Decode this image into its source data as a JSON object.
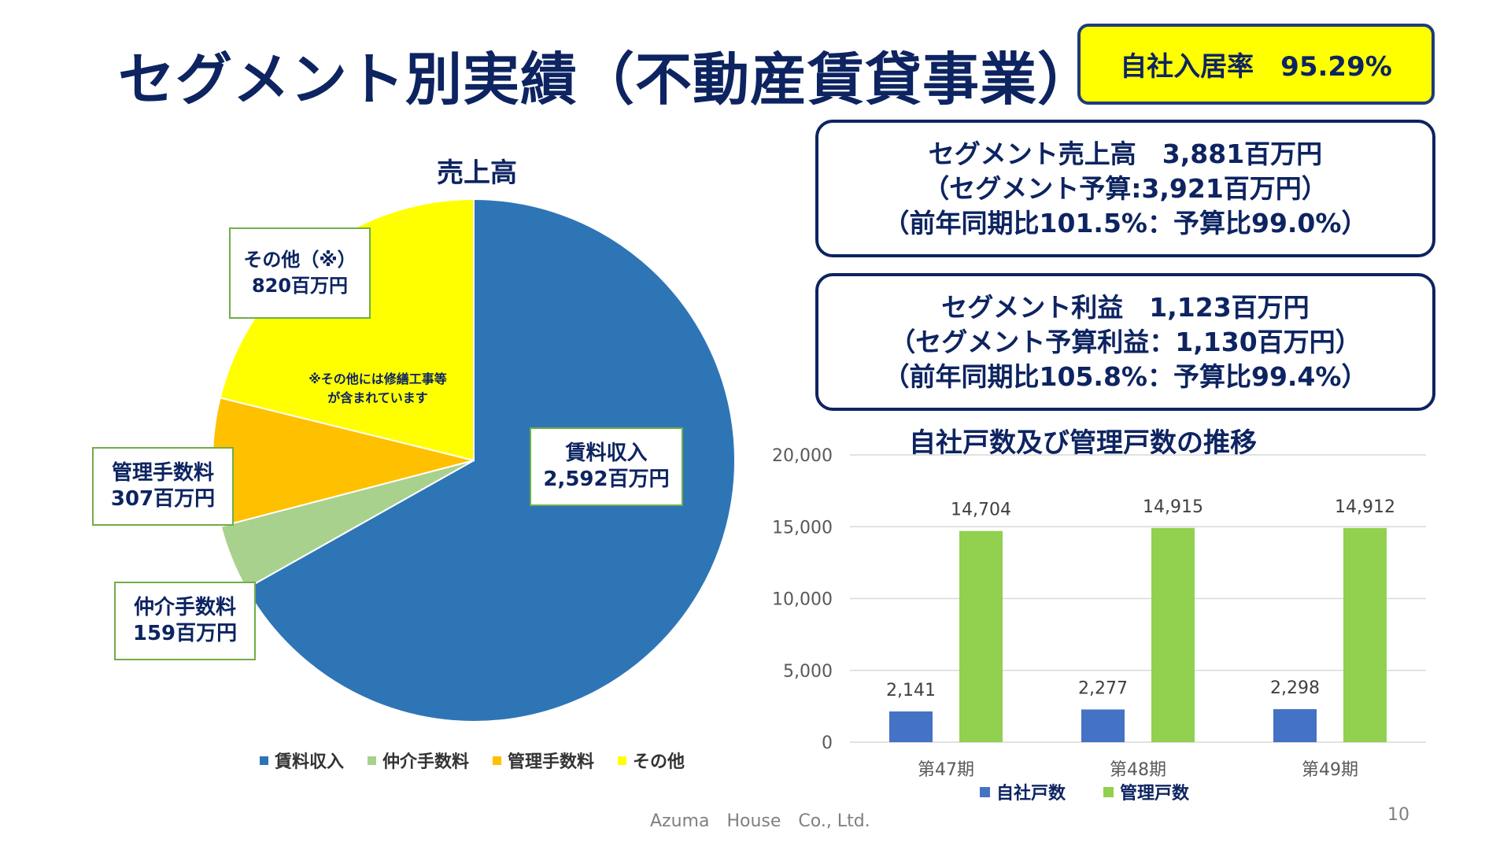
{
  "title": "セグメント別実績（不動産賃貸事業）",
  "occupancy": "自社入居率　95.29%",
  "sales_box": {
    "line1": "セグメント売上高　3,881百万円",
    "line2": "（セグメント予算:3,921百万円）",
    "line3": "（前年同期比101.5%：予算比99.0%）"
  },
  "profit_box": {
    "line1": "セグメント利益　1,123百万円",
    "line2": "（セグメント予算利益：1,130百万円）",
    "line3": "（前年同期比105.8%：予算比99.4%）"
  },
  "pie": {
    "callouts": {
      "rent": {
        "label": "賃料収入",
        "value": "2,592百万円"
      },
      "other": {
        "label": "その他（※）",
        "value": "820百万円"
      },
      "mgmt": {
        "label": "管理手数料",
        "value": "307百万円"
      },
      "broker": {
        "label": "仲介手数料",
        "value": "159百万円"
      }
    },
    "note_line1": "※その他には修繕工事等",
    "note_line2": "が含まれています"
  },
  "footer": "Azuma　House　Co., Ltd.",
  "page_number": "10",
  "chart_data": [
    {
      "type": "pie",
      "title": "売上高",
      "unit": "百万円",
      "categories": [
        "賃料収入",
        "仲介手数料",
        "管理手数料",
        "その他"
      ],
      "values": [
        2592,
        159,
        307,
        820
      ],
      "colors": [
        "#2e75b6",
        "#a9d18e",
        "#ffc000",
        "#ffff00"
      ],
      "legend": "bottom"
    },
    {
      "type": "bar",
      "title": "自社戸数及び管理戸数の推移",
      "categories": [
        "第47期",
        "第48期",
        "第49期"
      ],
      "series": [
        {
          "name": "自社戸数",
          "values": [
            2141,
            2277,
            2298
          ],
          "labels": [
            "2,141",
            "2,277",
            "2,298"
          ],
          "color": "#4472c4"
        },
        {
          "name": "管理戸数",
          "values": [
            14704,
            14915,
            14912
          ],
          "labels": [
            "14,704",
            "14,915",
            "14,912"
          ],
          "color": "#92d050"
        }
      ],
      "ylim": [
        0,
        20000
      ],
      "yticks": [
        0,
        5000,
        10000,
        15000,
        20000
      ],
      "ytick_labels": [
        "0",
        "5,000",
        "10,000",
        "15,000",
        "20,000"
      ],
      "grid": true,
      "legend": "bottom"
    }
  ]
}
